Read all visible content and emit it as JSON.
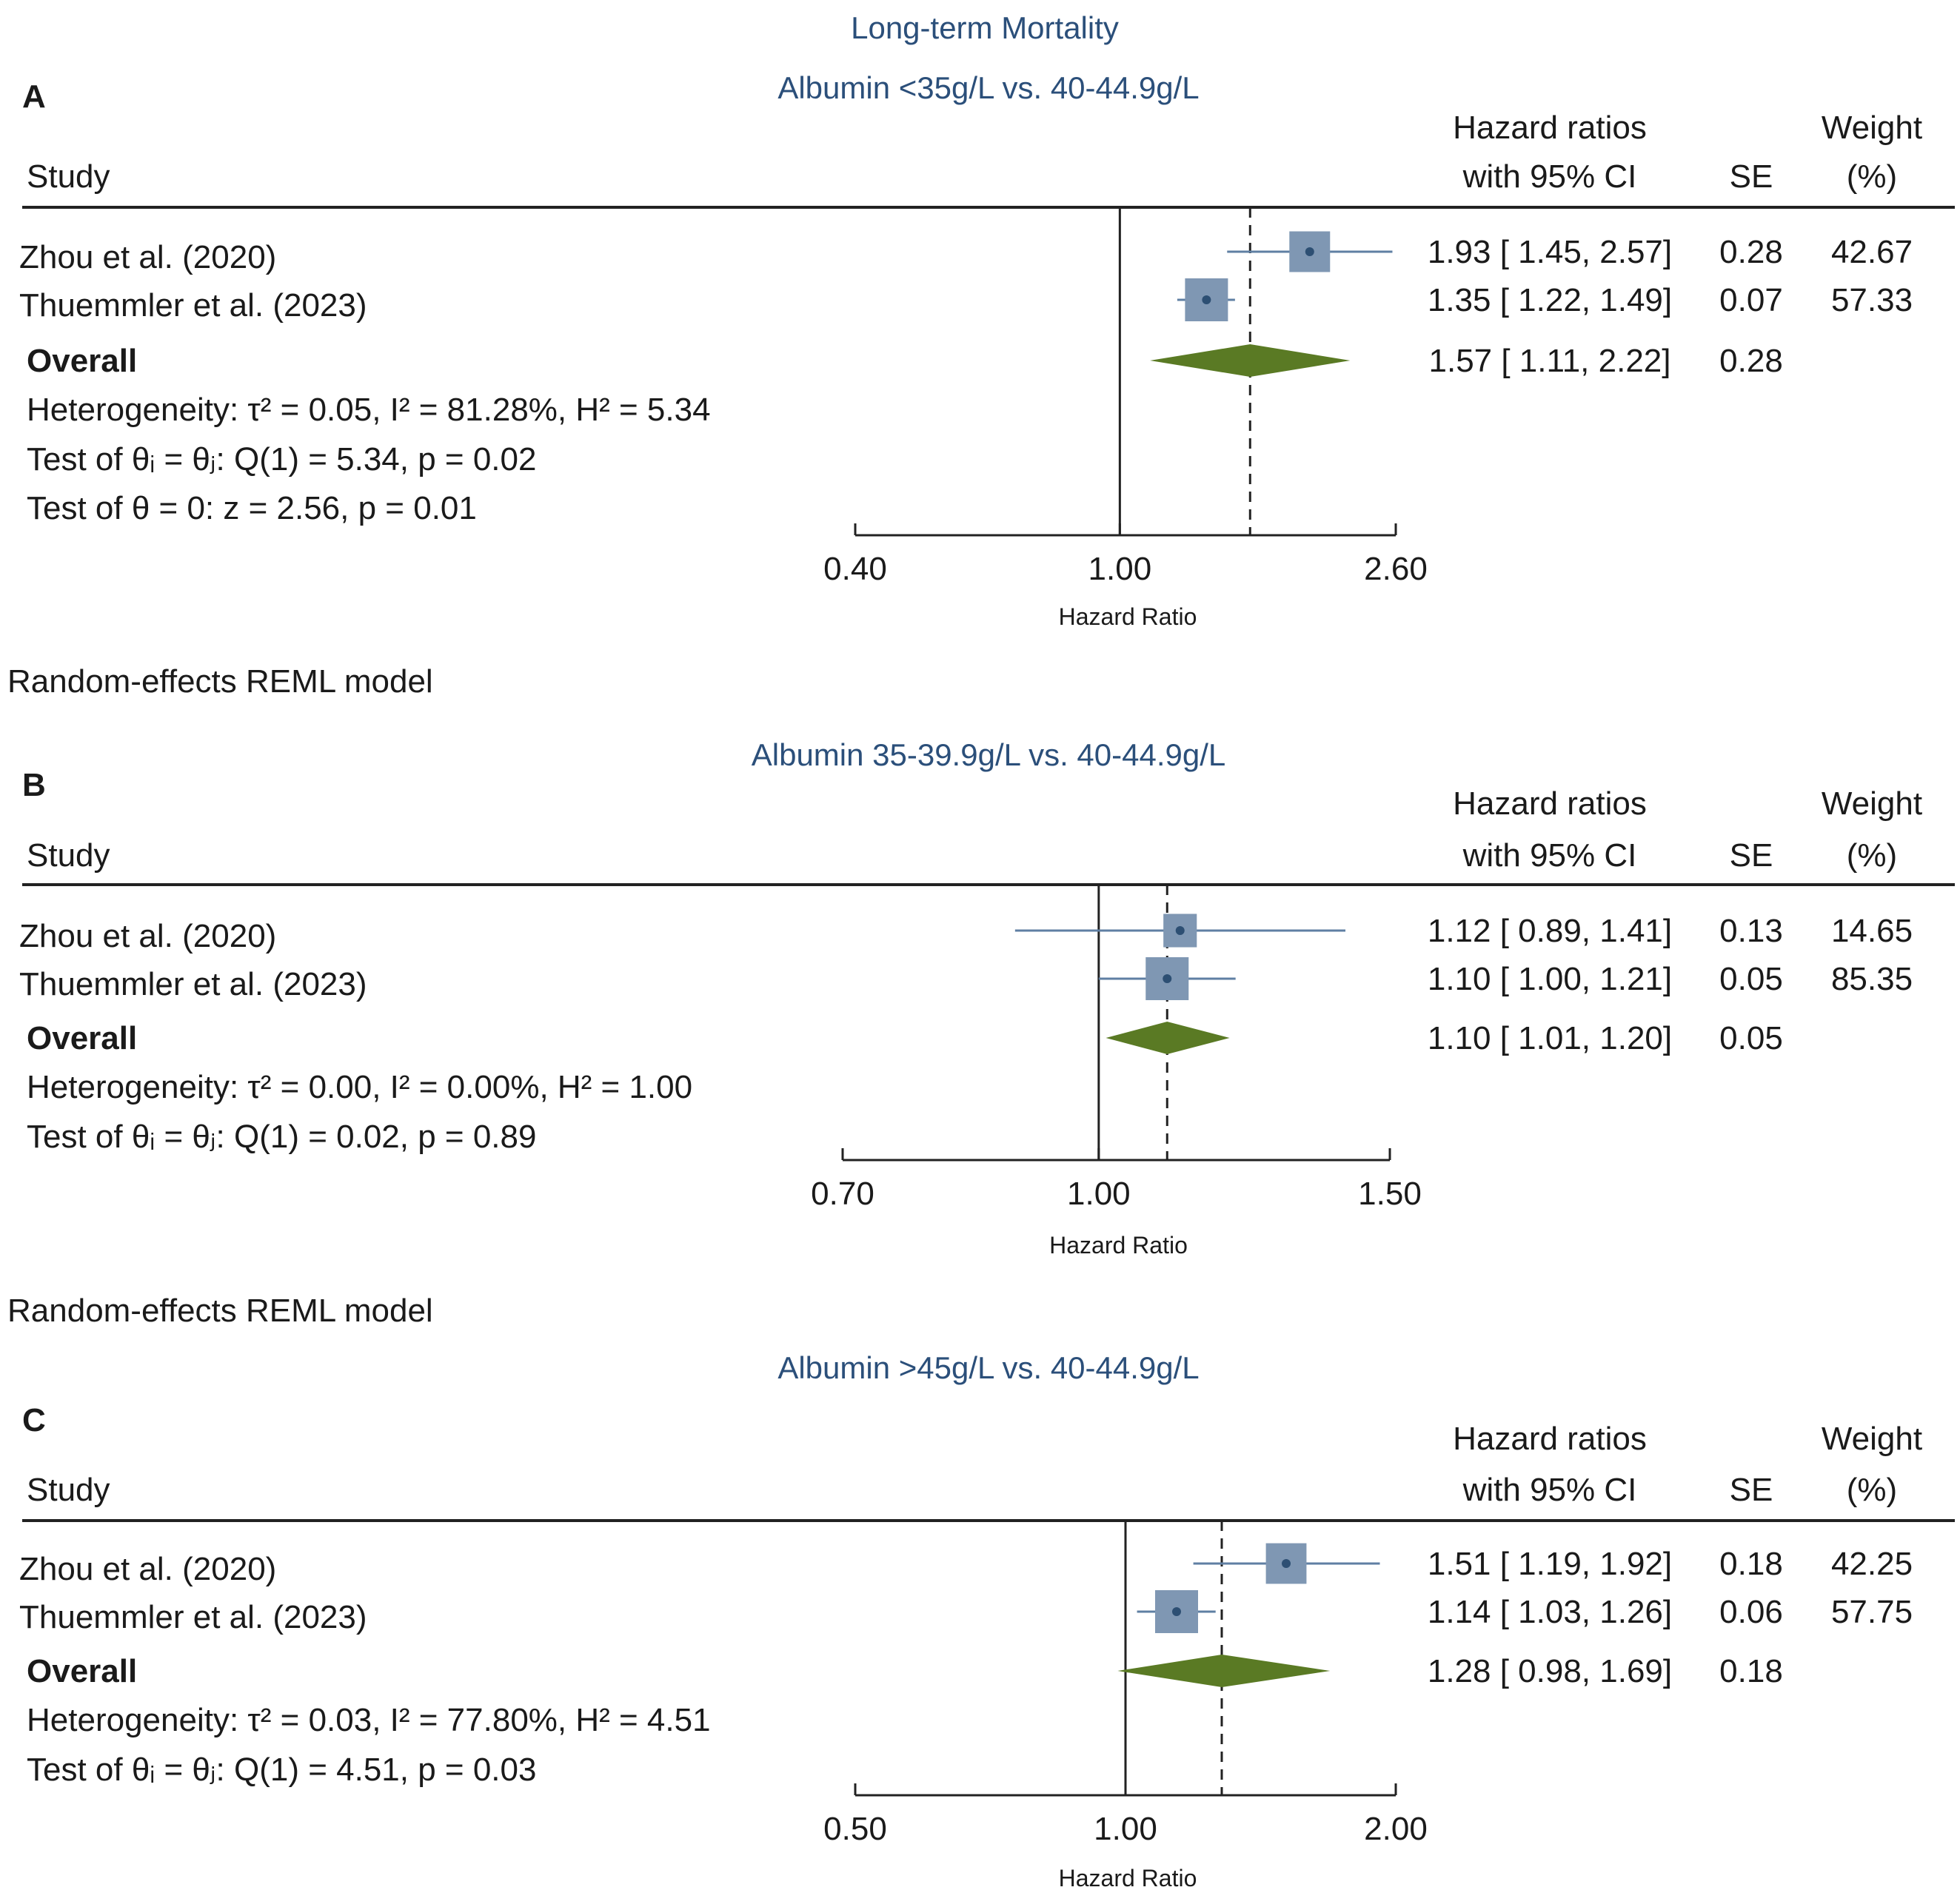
{
  "figure_title": "Long-term Mortality",
  "model_note": "Random-effects REML model",
  "columns": {
    "study": "Study",
    "hr_line1": "Hazard ratios",
    "hr_line2": "with 95% CI",
    "se": "SE",
    "weight_line1": "Weight",
    "weight_line2": "(%)"
  },
  "overall_label": "Overall",
  "axis_label": "Hazard Ratio",
  "colors": {
    "subtitle": "#2b4f7a",
    "box": "#7f97b3",
    "dot": "#2d4f73",
    "ci_line": "#5f7fa3",
    "diamond": "#5a7a24",
    "text": "#1a1a1a"
  },
  "chart_data": [
    {
      "type": "forest",
      "panel": "A",
      "title": "Albumin <35g/L vs. 40-44.9g/L",
      "xscale": "log",
      "xlim": [
        0.4,
        2.6
      ],
      "xticks": [
        "0.40",
        "1.00",
        "2.60"
      ],
      "null_value": 1.0,
      "studies": [
        {
          "name": "Zhou et al. (2020)",
          "hr": 1.93,
          "lo": 1.45,
          "hi": 2.57,
          "se": "0.28",
          "weight": "42.67",
          "text": "1.93 [ 1.45,  2.57]"
        },
        {
          "name": "Thuemmler et al. (2023)",
          "hr": 1.35,
          "lo": 1.22,
          "hi": 1.49,
          "se": "0.07",
          "weight": "57.33",
          "text": "1.35 [ 1.22,  1.49]"
        }
      ],
      "overall": {
        "hr": 1.57,
        "lo": 1.11,
        "hi": 2.22,
        "se": "0.28",
        "text": "1.57 [ 1.11,  2.22]"
      },
      "stats": [
        "Heterogeneity: τ² = 0.05, I² = 81.28%, H² = 5.34",
        "Test of θᵢ = θⱼ: Q(1) = 5.34, p = 0.02",
        "Test of θ = 0: z = 2.56, p = 0.01"
      ]
    },
    {
      "type": "forest",
      "panel": "B",
      "title": "Albumin 35-39.9g/L vs. 40-44.9g/L",
      "xscale": "log",
      "xlim": [
        0.7,
        1.5
      ],
      "xticks": [
        "0.70",
        "1.00",
        "1.50"
      ],
      "null_value": 1.0,
      "studies": [
        {
          "name": "Zhou et al. (2020)",
          "hr": 1.12,
          "lo": 0.89,
          "hi": 1.41,
          "se": "0.13",
          "weight": "14.65",
          "text": "1.12 [ 0.89,  1.41]"
        },
        {
          "name": "Thuemmler et al. (2023)",
          "hr": 1.1,
          "lo": 1.0,
          "hi": 1.21,
          "se": "0.05",
          "weight": "85.35",
          "text": "1.10 [ 1.00,  1.21]"
        }
      ],
      "overall": {
        "hr": 1.1,
        "lo": 1.01,
        "hi": 1.2,
        "se": "0.05",
        "text": "1.10 [ 1.01,  1.20]"
      },
      "stats": [
        "Heterogeneity: τ² = 0.00, I² = 0.00%, H² = 1.00",
        "Test of θᵢ = θⱼ: Q(1) = 0.02, p = 0.89"
      ]
    },
    {
      "type": "forest",
      "panel": "C",
      "title": "Albumin >45g/L vs. 40-44.9g/L",
      "xscale": "log",
      "xlim": [
        0.5,
        2.0
      ],
      "xticks": [
        "0.50",
        "1.00",
        "2.00"
      ],
      "null_value": 1.0,
      "studies": [
        {
          "name": "Zhou et al. (2020)",
          "hr": 1.51,
          "lo": 1.19,
          "hi": 1.92,
          "se": "0.18",
          "weight": "42.25",
          "text": "1.51 [ 1.19,  1.92]"
        },
        {
          "name": "Thuemmler et al. (2023)",
          "hr": 1.14,
          "lo": 1.03,
          "hi": 1.26,
          "se": "0.06",
          "weight": "57.75",
          "text": "1.14 [ 1.03,  1.26]"
        }
      ],
      "overall": {
        "hr": 1.28,
        "lo": 0.98,
        "hi": 1.69,
        "se": "0.18",
        "text": "1.28 [ 0.98,  1.69]"
      },
      "stats": [
        "Heterogeneity: τ² = 0.03, I² = 77.80%, H² = 4.51",
        "Test of θᵢ = θⱼ: Q(1) = 4.51, p = 0.03"
      ]
    }
  ]
}
